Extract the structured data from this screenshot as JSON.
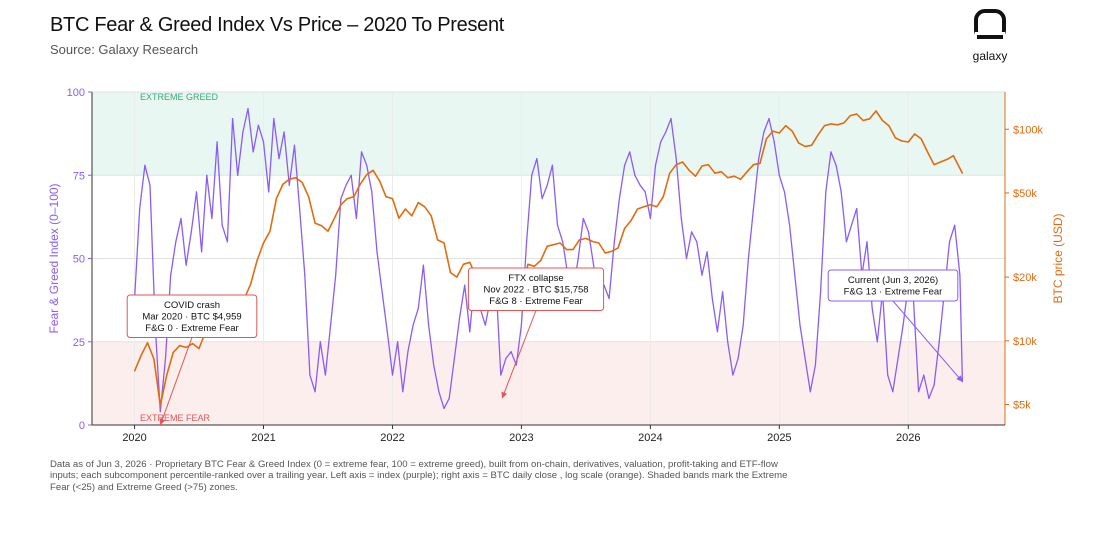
{
  "header": {
    "title": "BTC Fear & Greed Index Vs Price – 2020 To Present",
    "subtitle": "Source: Galaxy Research",
    "logo_text": "galaxy"
  },
  "footnote": "Data as of Jun 3, 2026 · Proprietary BTC Fear & Greed Index (0 = extreme fear, 100 = extreme greed), built from on-chain, derivatives, valuation, profit-taking and ETF-flow inputs; each subcomponent percentile-ranked over a trailing year. Left axis = index (purple); right axis = BTC daily close , log scale (orange). Shaded bands mark the Extreme Fear (<25) and Extreme Greed (>75) zones.",
  "colors": {
    "index": "#8b5cf6",
    "price": "#e06c10",
    "greed_band": "#e8f7f1",
    "fear_band": "#fdeeee",
    "greed_text": "#3aaa7a",
    "fear_text": "#e05555",
    "annotation": "#e05555",
    "annotation_current": "#8b5cf6"
  },
  "chart_data": {
    "type": "line",
    "xlim": [
      2019.67,
      2026.75
    ],
    "x_ticks": [
      {
        "value": 2020,
        "label": "2020"
      },
      {
        "value": 2021,
        "label": "2021"
      },
      {
        "value": 2022,
        "label": "2022"
      },
      {
        "value": 2023,
        "label": "2023"
      },
      {
        "value": 2024,
        "label": "2024"
      },
      {
        "value": 2025,
        "label": "2025"
      },
      {
        "value": 2026,
        "label": "2026"
      }
    ],
    "y_left": {
      "label": "Fear & Greed Index (0–100)",
      "lim": [
        0,
        100
      ],
      "ticks": [
        0,
        25,
        50,
        75,
        100
      ]
    },
    "y_right": {
      "label": "BTC price (USD)",
      "scale": "log",
      "lim": [
        4000,
        150000
      ],
      "ticks": [
        {
          "value": 5000,
          "label": "$5k"
        },
        {
          "value": 10000,
          "label": "$10k"
        },
        {
          "value": 20000,
          "label": "$20k"
        },
        {
          "value": 50000,
          "label": "$50k"
        },
        {
          "value": 100000,
          "label": "$100k"
        }
      ]
    },
    "bands": [
      {
        "label": "EXTREME GREED",
        "from": 75,
        "to": 100
      },
      {
        "label": "EXTREME FEAR",
        "from": 0,
        "to": 25
      }
    ],
    "series": [
      {
        "name": "Fear & Greed Index",
        "axis": "left",
        "x": [
          2020.0,
          2020.04,
          2020.08,
          2020.12,
          2020.16,
          2020.2,
          2020.24,
          2020.28,
          2020.32,
          2020.36,
          2020.4,
          2020.44,
          2020.48,
          2020.52,
          2020.56,
          2020.6,
          2020.64,
          2020.68,
          2020.72,
          2020.76,
          2020.8,
          2020.84,
          2020.88,
          2020.92,
          2020.96,
          2021.0,
          2021.04,
          2021.08,
          2021.12,
          2021.16,
          2021.2,
          2021.24,
          2021.28,
          2021.32,
          2021.36,
          2021.4,
          2021.44,
          2021.48,
          2021.52,
          2021.56,
          2021.6,
          2021.64,
          2021.68,
          2021.72,
          2021.76,
          2021.8,
          2021.84,
          2021.88,
          2021.92,
          2021.96,
          2022.0,
          2022.04,
          2022.08,
          2022.12,
          2022.16,
          2022.2,
          2022.24,
          2022.28,
          2022.32,
          2022.36,
          2022.4,
          2022.44,
          2022.48,
          2022.52,
          2022.56,
          2022.6,
          2022.64,
          2022.68,
          2022.72,
          2022.76,
          2022.8,
          2022.84,
          2022.88,
          2022.92,
          2022.96,
          2023.0,
          2023.04,
          2023.08,
          2023.12,
          2023.16,
          2023.2,
          2023.24,
          2023.28,
          2023.32,
          2023.36,
          2023.4,
          2023.44,
          2023.48,
          2023.52,
          2023.56,
          2023.6,
          2023.64,
          2023.68,
          2023.72,
          2023.76,
          2023.8,
          2023.84,
          2023.88,
          2023.92,
          2023.96,
          2024.0,
          2024.04,
          2024.08,
          2024.12,
          2024.16,
          2024.2,
          2024.24,
          2024.28,
          2024.32,
          2024.36,
          2024.4,
          2024.44,
          2024.48,
          2024.52,
          2024.56,
          2024.6,
          2024.64,
          2024.68,
          2024.72,
          2024.76,
          2024.8,
          2024.84,
          2024.88,
          2024.92,
          2024.96,
          2025.0,
          2025.04,
          2025.08,
          2025.12,
          2025.16,
          2025.2,
          2025.24,
          2025.28,
          2025.32,
          2025.36,
          2025.4,
          2025.44,
          2025.48,
          2025.52,
          2025.56,
          2025.6,
          2025.64,
          2025.68,
          2025.72,
          2025.76,
          2025.8,
          2025.84,
          2025.88,
          2025.92,
          2025.96,
          2026.0,
          2026.04,
          2026.08,
          2026.12,
          2026.16,
          2026.2,
          2026.24,
          2026.28,
          2026.32,
          2026.36,
          2026.4,
          2026.42
        ],
        "values": [
          38,
          65,
          78,
          72,
          30,
          4,
          20,
          45,
          55,
          62,
          48,
          58,
          70,
          52,
          75,
          62,
          85,
          60,
          55,
          92,
          75,
          88,
          95,
          82,
          90,
          85,
          70,
          92,
          80,
          88,
          72,
          84,
          65,
          45,
          15,
          10,
          25,
          15,
          30,
          45,
          68,
          72,
          75,
          62,
          82,
          78,
          70,
          52,
          40,
          28,
          15,
          25,
          10,
          22,
          30,
          35,
          48,
          30,
          18,
          10,
          5,
          8,
          20,
          32,
          42,
          28,
          45,
          35,
          30,
          38,
          45,
          15,
          20,
          22,
          18,
          30,
          55,
          75,
          80,
          68,
          72,
          78,
          60,
          55,
          45,
          40,
          50,
          62,
          58,
          48,
          35,
          42,
          38,
          55,
          68,
          78,
          82,
          75,
          72,
          70,
          62,
          78,
          85,
          88,
          92,
          80,
          62,
          50,
          58,
          55,
          45,
          52,
          38,
          28,
          40,
          25,
          15,
          20,
          30,
          50,
          65,
          80,
          88,
          92,
          85,
          75,
          70,
          60,
          45,
          30,
          20,
          10,
          18,
          40,
          70,
          82,
          78,
          70,
          55,
          60,
          65,
          45,
          55,
          35,
          25,
          40,
          15,
          10,
          20,
          30,
          42,
          38,
          10,
          15,
          8,
          12,
          25,
          40,
          55,
          60,
          45,
          13
        ]
      },
      {
        "name": "BTC price",
        "axis": "right",
        "x": [
          2020.0,
          2020.05,
          2020.1,
          2020.15,
          2020.2,
          2020.25,
          2020.3,
          2020.35,
          2020.4,
          2020.45,
          2020.5,
          2020.55,
          2020.6,
          2020.65,
          2020.7,
          2020.75,
          2020.8,
          2020.85,
          2020.9,
          2020.95,
          2021.0,
          2021.05,
          2021.1,
          2021.15,
          2021.2,
          2021.25,
          2021.3,
          2021.35,
          2021.4,
          2021.45,
          2021.5,
          2021.55,
          2021.6,
          2021.65,
          2021.7,
          2021.75,
          2021.8,
          2021.85,
          2021.9,
          2021.95,
          2022.0,
          2022.05,
          2022.1,
          2022.15,
          2022.2,
          2022.25,
          2022.3,
          2022.35,
          2022.4,
          2022.45,
          2022.5,
          2022.55,
          2022.6,
          2022.65,
          2022.7,
          2022.75,
          2022.8,
          2022.85,
          2022.9,
          2022.95,
          2023.0,
          2023.05,
          2023.1,
          2023.15,
          2023.2,
          2023.25,
          2023.3,
          2023.35,
          2023.4,
          2023.45,
          2023.5,
          2023.55,
          2023.6,
          2023.65,
          2023.7,
          2023.75,
          2023.8,
          2023.85,
          2023.9,
          2023.95,
          2024.0,
          2024.05,
          2024.1,
          2024.15,
          2024.2,
          2024.25,
          2024.3,
          2024.35,
          2024.4,
          2024.45,
          2024.5,
          2024.55,
          2024.6,
          2024.65,
          2024.7,
          2024.75,
          2024.8,
          2024.85,
          2024.9,
          2024.95,
          2025.0,
          2025.05,
          2025.1,
          2025.15,
          2025.2,
          2025.25,
          2025.3,
          2025.35,
          2025.4,
          2025.45,
          2025.5,
          2025.55,
          2025.6,
          2025.65,
          2025.7,
          2025.75,
          2025.8,
          2025.85,
          2025.9,
          2025.95,
          2026.0,
          2026.05,
          2026.1,
          2026.15,
          2026.2,
          2026.25,
          2026.3,
          2026.35,
          2026.42
        ],
        "values": [
          7200,
          8500,
          9800,
          8200,
          4959,
          6900,
          8800,
          9500,
          9300,
          9700,
          9200,
          11000,
          11700,
          11400,
          10800,
          10600,
          13100,
          15800,
          18500,
          24000,
          29000,
          33000,
          47000,
          55000,
          58000,
          59000,
          56000,
          48000,
          36000,
          35000,
          33000,
          38000,
          44000,
          47000,
          48000,
          55000,
          61000,
          64000,
          57000,
          48000,
          47000,
          38000,
          42000,
          39000,
          45000,
          43000,
          39000,
          30000,
          29000,
          21000,
          20000,
          23000,
          23500,
          20000,
          19500,
          19800,
          20500,
          15758,
          16900,
          16600,
          16500,
          23000,
          22500,
          24000,
          28000,
          28500,
          29000,
          27000,
          27000,
          30000,
          30500,
          29500,
          29000,
          26000,
          26500,
          27500,
          34000,
          37000,
          42000,
          43000,
          44000,
          43000,
          48000,
          62000,
          68000,
          70000,
          64000,
          60000,
          67000,
          68000,
          62000,
          63000,
          59000,
          60000,
          58000,
          63000,
          68000,
          69000,
          90000,
          98000,
          96000,
          104000,
          98000,
          86000,
          83000,
          84000,
          94000,
          104000,
          106000,
          105000,
          107000,
          116000,
          118000,
          110000,
          112000,
          122000,
          110000,
          104000,
          91000,
          88000,
          87000,
          95000,
          90000,
          78000,
          68000,
          70000,
          72000,
          75000,
          62000
        ]
      }
    ],
    "annotations": [
      {
        "lines": [
          "COVID crash",
          "Mar 2020 · BTC $4,959",
          "F&G 0 · Extreme Fear"
        ],
        "point_x": 2020.2,
        "point_y": 0
      },
      {
        "lines": [
          "FTX collapse",
          "Nov 2022 · BTC $15,758",
          "F&G 8 · Extreme Fear"
        ],
        "point_x": 2022.85,
        "point_y": 8
      },
      {
        "lines": [
          "Current (Jun 3, 2026)",
          "F&G 13 · Extreme Fear"
        ],
        "point_x": 2026.42,
        "point_y": 13
      }
    ]
  }
}
